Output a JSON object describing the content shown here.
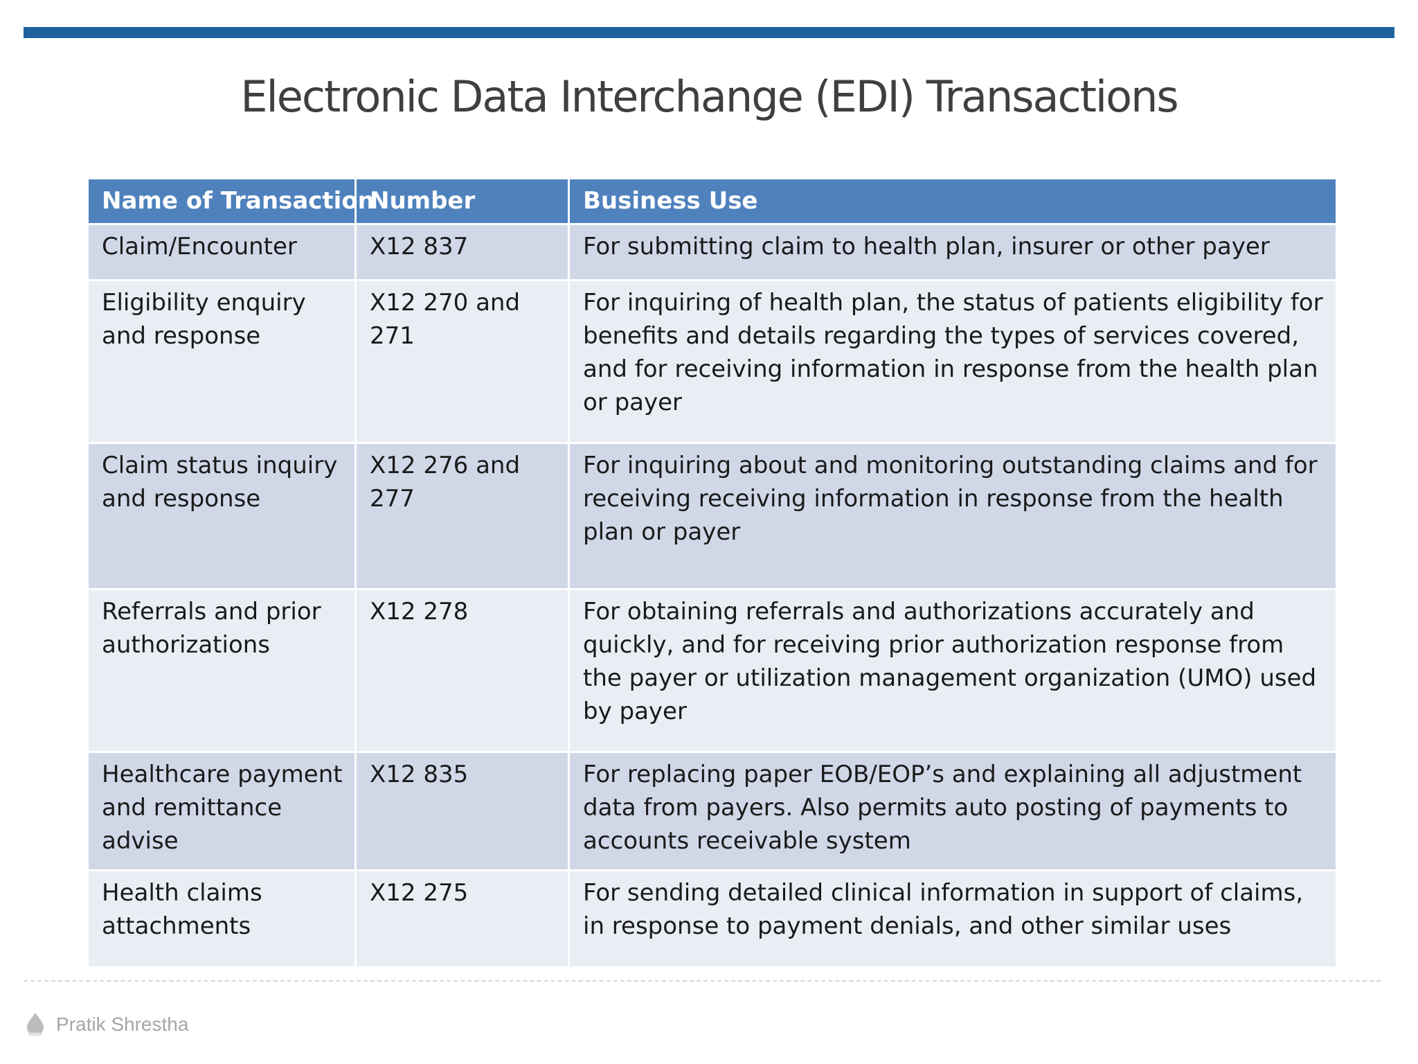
{
  "title": "Electronic Data Interchange (EDI) Transactions",
  "table": {
    "headers": [
      "Name of Transaction",
      "Number",
      "Business Use"
    ],
    "rows": [
      [
        "Claim/Encounter",
        "X12 837",
        "For submitting claim to health plan, insurer or other payer"
      ],
      [
        "Eligibility enquiry and response",
        "X12 270 and 271",
        "For inquiring of health plan, the status of patients eligibility for benefits and details regarding the types of services covered, and for receiving information in response from the health plan or payer"
      ],
      [
        "Claim status inquiry and response",
        "X12 276 and 277",
        "For inquiring about and monitoring outstanding claims and for receiving receiving information in response from the health plan or payer"
      ],
      [
        "Referrals and prior authorizations",
        "X12 278",
        "For obtaining referrals and authorizations accurately and quickly, and for receiving prior authorization response from the payer or utilization management organization (UMO) used by payer"
      ],
      [
        "Healthcare payment and remittance advise",
        "X12 835",
        "For replacing paper EOB/EOP’s and explaining all adjustment data from payers. Also permits auto posting of payments to accounts receivable system"
      ],
      [
        "Health claims attachments",
        "X12 275",
        "For sending detailed clinical information in support of claims, in response to payment denials, and other similar uses"
      ]
    ]
  },
  "footer": {
    "author": "Pratik Shrestha",
    "logo_icon": "water-drop-icon"
  },
  "colors": {
    "accent_bar": "#1e63a0",
    "header_bg": "#4f81bd",
    "row_dark": "#d0d8e8",
    "row_light": "#e9edf4",
    "title_text": "#3f3f3f",
    "footer_text": "#a6a6a6"
  }
}
